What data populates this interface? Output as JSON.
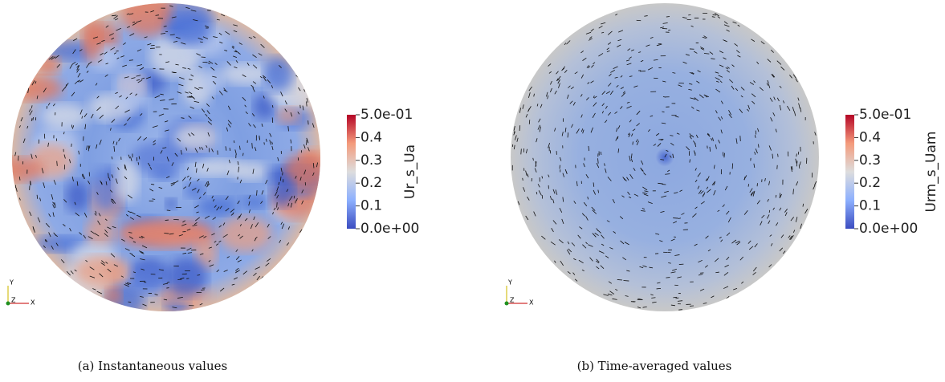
{
  "panels": [
    {
      "caption": "(a) Instantaneous values",
      "colorbar": {
        "title": "Ur_s_Ua",
        "lim": [
          0,
          0.5
        ],
        "ticks": [
          {
            "value": 0.5,
            "label": "5.0e-01"
          },
          0.4,
          0.3,
          0.2,
          0.1,
          {
            "value": 0,
            "label": "0.0e+00"
          }
        ]
      },
      "axes": {
        "y": "Y",
        "z": "Z",
        "x": "X"
      }
    },
    {
      "caption": "(b) Time-averaged values",
      "colorbar": {
        "title": "Urm_s_Uam",
        "lim": [
          0,
          0.5
        ],
        "ticks": [
          {
            "value": 0.5,
            "label": "5.0e-01"
          },
          0.4,
          0.3,
          0.2,
          0.1,
          {
            "value": 0,
            "label": "0.0e+00"
          }
        ]
      },
      "axes": {
        "y": "Y",
        "z": "Z",
        "x": "X"
      }
    }
  ]
}
